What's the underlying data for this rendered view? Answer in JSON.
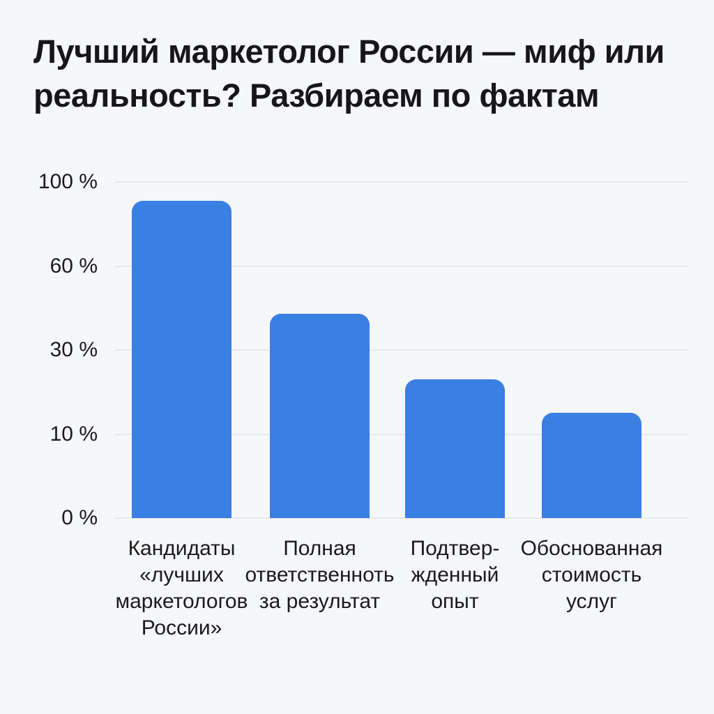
{
  "page": {
    "background_color": "#f6f7f9",
    "title": "Лучший маркетолог России — миф или реальность? Разбираем по фактам",
    "title_color": "#17171a"
  },
  "chart_data": {
    "type": "bar",
    "title": "Лучший маркетолог России — миф или реальность? Разбираем по фактам",
    "categories": [
      [
        "Кандидаты",
        "«лучших",
        "маркетологов",
        "России»"
      ],
      [
        "Полная",
        "ответственноть",
        "за результат"
      ],
      [
        "Подтвер-",
        "жденный",
        "опыт"
      ],
      [
        "Обоснованная",
        "стоимость",
        "услуг"
      ]
    ],
    "values": [
      91,
      43,
      23,
      15
    ],
    "unit": "%",
    "yticks": [
      0,
      10,
      30,
      60,
      100
    ],
    "ytick_labels": [
      "0 %",
      "10 %",
      "30 %",
      "60 %",
      "100 %"
    ],
    "axis_scale": "ordinal: the five tick gridlines are evenly spaced despite non-uniform tick values",
    "xlabel": "",
    "ylabel": "",
    "grid": true,
    "legend": false,
    "bar_color": "#3a7fe2",
    "grid_color": "#e6e8eb",
    "label_color": "#1a1a1c"
  }
}
